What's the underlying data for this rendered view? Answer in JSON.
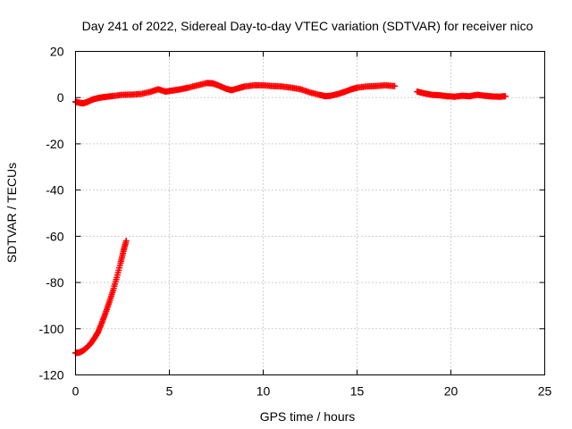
{
  "chart_data": {
    "type": "scatter",
    "title": "Day 241 of 2022, Sidereal Day-to-day VTEC variation (SDTVAR) for receiver nico",
    "xlabel": "GPS time / hours",
    "ylabel": "SDTVAR / TECUs",
    "xlim": [
      0,
      25
    ],
    "ylim": [
      -120,
      20
    ],
    "xticks": [
      0,
      5,
      10,
      15,
      20,
      25
    ],
    "yticks": [
      -120,
      -100,
      -80,
      -60,
      -40,
      -20,
      0,
      20
    ],
    "grid": true,
    "marker": "plus",
    "color": "#ff0000",
    "series": [
      {
        "name": "sdtvar-main",
        "points": [
          [
            0.0,
            -1.8
          ],
          [
            0.2,
            -2.2
          ],
          [
            0.4,
            -2.5
          ],
          [
            0.6,
            -2.0
          ],
          [
            0.8,
            -1.2
          ],
          [
            1.0,
            -0.6
          ],
          [
            1.3,
            0.0
          ],
          [
            1.6,
            0.3
          ],
          [
            2.0,
            0.7
          ],
          [
            2.5,
            1.2
          ],
          [
            3.0,
            1.3
          ],
          [
            3.5,
            1.6
          ],
          [
            4.0,
            2.5
          ],
          [
            4.4,
            3.6
          ],
          [
            4.8,
            2.6
          ],
          [
            5.2,
            3.1
          ],
          [
            5.6,
            3.6
          ],
          [
            6.0,
            4.3
          ],
          [
            6.5,
            5.3
          ],
          [
            7.0,
            6.3
          ],
          [
            7.3,
            6.2
          ],
          [
            7.6,
            5.3
          ],
          [
            8.0,
            3.9
          ],
          [
            8.3,
            3.2
          ],
          [
            8.7,
            4.1
          ],
          [
            9.0,
            4.8
          ],
          [
            9.5,
            5.3
          ],
          [
            10.0,
            5.3
          ],
          [
            10.5,
            5.0
          ],
          [
            11.0,
            4.8
          ],
          [
            11.5,
            4.3
          ],
          [
            12.0,
            3.6
          ],
          [
            12.5,
            2.2
          ],
          [
            13.0,
            1.2
          ],
          [
            13.3,
            0.6
          ],
          [
            13.6,
            0.8
          ],
          [
            14.0,
            1.6
          ],
          [
            14.3,
            2.4
          ],
          [
            14.7,
            3.6
          ],
          [
            15.0,
            4.3
          ],
          [
            15.5,
            4.8
          ],
          [
            16.0,
            5.0
          ],
          [
            16.5,
            5.3
          ],
          [
            17.0,
            5.0
          ]
        ]
      },
      {
        "name": "sdtvar-late",
        "points": [
          [
            18.2,
            2.6
          ],
          [
            18.6,
            1.8
          ],
          [
            19.0,
            1.2
          ],
          [
            19.4,
            1.0
          ],
          [
            19.8,
            0.6
          ],
          [
            20.2,
            0.4
          ],
          [
            20.6,
            0.8
          ],
          [
            21.0,
            0.6
          ],
          [
            21.4,
            1.2
          ],
          [
            21.8,
            0.8
          ],
          [
            22.2,
            0.5
          ],
          [
            22.6,
            0.4
          ],
          [
            22.9,
            0.6
          ]
        ]
      },
      {
        "name": "sdtvar-initial-drop",
        "points": [
          [
            0.0,
            -110.5
          ],
          [
            0.2,
            -110.3
          ],
          [
            0.4,
            -109.5
          ],
          [
            0.6,
            -108.2
          ],
          [
            0.8,
            -106.5
          ],
          [
            1.0,
            -104.2
          ],
          [
            1.2,
            -101.5
          ],
          [
            1.4,
            -97.5
          ],
          [
            1.6,
            -93.2
          ],
          [
            1.8,
            -88.5
          ],
          [
            2.0,
            -83.5
          ],
          [
            2.2,
            -77.8
          ],
          [
            2.4,
            -71.6
          ],
          [
            2.55,
            -66.5
          ],
          [
            2.7,
            -62.0
          ]
        ]
      }
    ]
  }
}
